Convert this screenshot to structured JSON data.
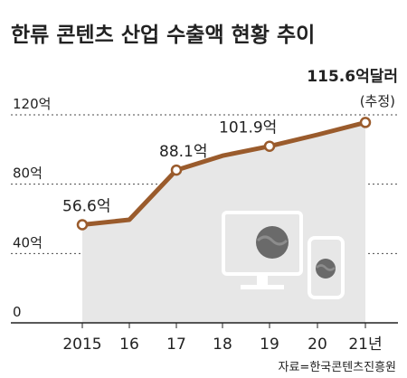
{
  "colors": {
    "background": "#ffffff",
    "area_fill": "#e7e7e7",
    "line": "#9a5b2c",
    "point_fill": "#ffffff",
    "grid": "#4a4a4a",
    "text": "#222222",
    "device": "#ffffff",
    "device_dot": "#6a6a6a"
  },
  "chart_data": {
    "type": "area",
    "title": "한류 콘텐츠 산업 수출액 현황 추이",
    "categories": [
      "2015",
      "16",
      "17",
      "18",
      "19",
      "20",
      "21년"
    ],
    "series": [
      {
        "values": [
          56.6,
          59.5,
          88.1,
          96.4,
          101.9,
          108.5,
          115.6
        ]
      }
    ],
    "y_ticks": [
      {
        "value": 0,
        "label": "0"
      },
      {
        "value": 40,
        "label": "40억"
      },
      {
        "value": 80,
        "label": "80억"
      },
      {
        "value": 120,
        "label": "120억"
      }
    ],
    "ylim": [
      0,
      120
    ],
    "grid": "horizontal dashed",
    "data_labels": [
      {
        "index": 0,
        "text": "56.6억"
      },
      {
        "index": 2,
        "text": "88.1억"
      },
      {
        "index": 4,
        "text": "101.9억"
      }
    ],
    "last_label": {
      "index": 6,
      "value_text": "115.6억달러",
      "note": "(추정)"
    },
    "source": "자료=한국콘텐츠진흥원",
    "illustration_icons": [
      "desktop-monitor-icon",
      "smartphone-icon"
    ]
  }
}
